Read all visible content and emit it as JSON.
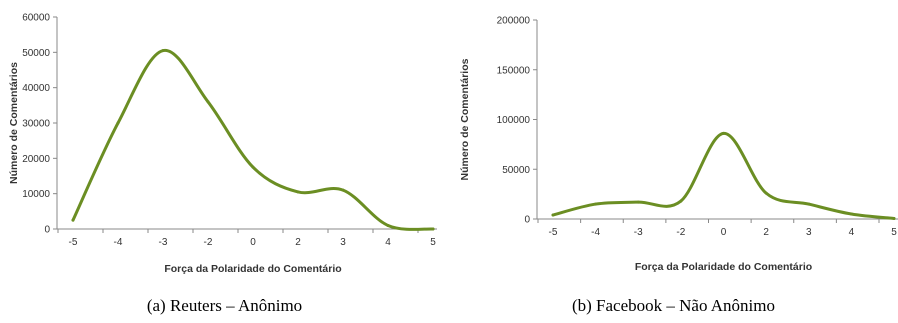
{
  "chart_data": [
    {
      "type": "line",
      "caption": "(a) Reuters – Anônimo",
      "xlabel": "Força da Polaridade do Comentário",
      "ylabel": "Número de Comentários",
      "categories": [
        "-5",
        "-4",
        "-3",
        "-2",
        "0",
        "2",
        "3",
        "4",
        "5"
      ],
      "ylim": [
        0,
        60000
      ],
      "yticks": [
        "0",
        "10000",
        "20000",
        "30000",
        "40000",
        "50000",
        "60000"
      ],
      "series": [
        {
          "values": [
            2500,
            30000,
            50500,
            36000,
            17500,
            10500,
            11000,
            1000,
            0
          ]
        }
      ],
      "grid": false,
      "line_color": "#6b8e23"
    },
    {
      "type": "line",
      "caption": "(b) Facebook – Não Anônimo",
      "xlabel": "Força da Polaridade do Comentário",
      "ylabel": "Número de Comentários",
      "categories": [
        "-5",
        "-4",
        "-3",
        "-2",
        "0",
        "2",
        "3",
        "4",
        "5"
      ],
      "ylim": [
        0,
        200000
      ],
      "yticks": [
        "0",
        "50000",
        "100000",
        "150000",
        "200000"
      ],
      "series": [
        {
          "values": [
            4000,
            15000,
            17000,
            18000,
            86000,
            26000,
            15000,
            5000,
            500
          ]
        }
      ],
      "grid": false,
      "line_color": "#6b8e23"
    }
  ]
}
